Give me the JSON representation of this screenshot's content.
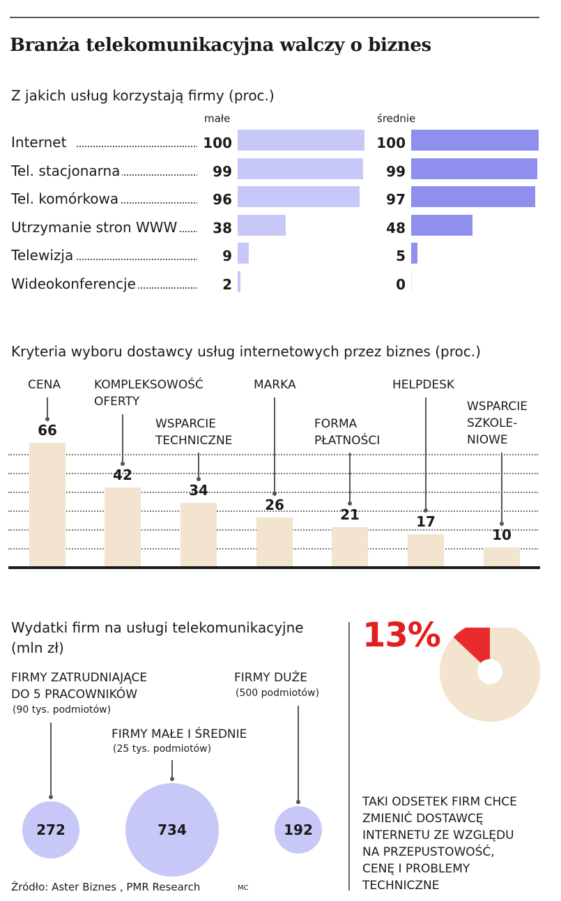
{
  "title": "Branża telekomunikacyjna walczy o biznes",
  "services": {
    "title": "Z jakich usług korzystają firmy (proc.)",
    "col_small": "małe",
    "col_medium": "średnie"
  },
  "criteria": {
    "title": "Kryteria wyboru dostawcy usług internetowych przez biznes (proc.)"
  },
  "spending": {
    "title_line1": "Wydatki firm na usługi telekomunikacyjne",
    "title_line2": "(mln zł)"
  },
  "pie": {
    "percent_label": "13%",
    "caption": "TAKI ODSETEK FIRM CHCE\nZMIENIĆ DOSTAWCĘ\nINTERNETU ZE WZGLĘDU\nNA PRZEPUSTOWOŚĆ,\nCENĘ I PROBLEMY\nTECHNICZNE"
  },
  "source": "Źródło: Aster Biznes , PMR Research",
  "author": "MC",
  "colors": {
    "small_bar": "#c8c8f8",
    "medium_bar": "#8f8fee",
    "criteria_bar": "#f2e4cf",
    "pie_highlight": "#e82a2a",
    "pie_rest": "#f2e4cf",
    "accent_red": "#e21e1e"
  },
  "chart_data": [
    {
      "type": "bar",
      "orientation": "horizontal",
      "categories": [
        "Internet",
        "Tel. stacjonarna",
        "Tel. komórkowa",
        "Utrzymanie stron WWW",
        "Telewizja",
        "Wideokonferencje"
      ],
      "series": [
        {
          "name": "małe",
          "values": [
            100,
            99,
            96,
            38,
            9,
            2
          ]
        },
        {
          "name": "średnie",
          "values": [
            100,
            99,
            97,
            48,
            5,
            0
          ]
        }
      ],
      "xlim": [
        0,
        100
      ]
    },
    {
      "type": "bar",
      "categories": [
        "CENA",
        "KOMPLEKSOWOŚĆ\nOFERTY",
        "WSPARCIE\nTECHNICZNE",
        "MARKA",
        "FORMA\nPŁATNOŚCI",
        "HELPDESK",
        "WSPARCIE\nSZKOLE-\nNIOWE"
      ],
      "values": [
        66,
        42,
        34,
        26,
        21,
        17,
        10
      ],
      "ylim": [
        0,
        66
      ]
    },
    {
      "type": "scatter",
      "subtype": "bubble",
      "series": [
        {
          "label": "FIRMY ZATRUDNIAJĄCE\nDO 5 PRACOWNIKÓW",
          "sublabel": "(90 tys. podmiotów)",
          "value": 272
        },
        {
          "label": "FIRMY MAŁE I ŚREDNIE",
          "sublabel": "(25 tys. podmiotów)",
          "value": 734
        },
        {
          "label": "FIRMY DUŻE",
          "sublabel": "(500 podmiotów)",
          "value": 192
        }
      ]
    },
    {
      "type": "pie",
      "values": [
        13,
        87
      ],
      "labels": [
        "13%",
        ""
      ]
    }
  ]
}
